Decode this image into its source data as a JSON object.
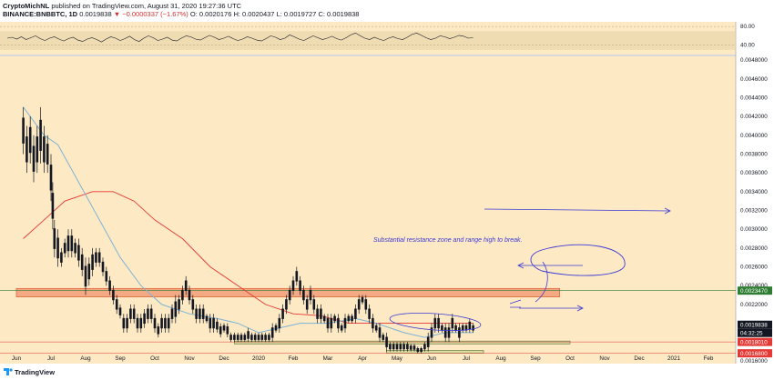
{
  "header": {
    "author": "CryptoMichNL",
    "published": "published on TradingView.com, August 31, 2020 19:27:36 UTC",
    "pair": "BINANCE:BNBBTC, 1D",
    "last": "0.0019838",
    "change": "▼ −0.0000337 (−1.67%)",
    "ohlc": "O: 0.0020176 H: 0.0020437 L: 0.0019727 C: 0.0019838"
  },
  "footer": {
    "brand": "TradingView"
  },
  "colors": {
    "background": "#fde9c4",
    "candles": "#131722",
    "ma_blue": "#7fb3d5",
    "ma_red": "#e53935",
    "resistance_zone": "#f2a07a",
    "support_zone": "#cfdc9a",
    "annotation": "#3a3ad6",
    "price_tag_green": "#2e7d32",
    "price_tag_black": "#131722",
    "price_tag_red": "#e53935"
  },
  "chart_data": [
    {
      "type": "line",
      "name": "rsi-panel",
      "ylim": [
        20,
        90
      ],
      "tick_labels": [
        "80.00",
        "40.00"
      ],
      "band": [
        30,
        70
      ],
      "values": [
        55,
        57,
        53,
        58,
        52,
        56,
        60,
        54,
        50,
        55,
        58,
        53,
        49,
        54,
        57,
        51,
        48,
        53,
        56,
        52,
        47,
        53,
        58,
        55,
        50,
        54,
        59,
        52,
        48,
        55,
        60,
        56,
        50,
        53,
        57,
        51,
        49,
        55,
        60,
        58,
        53,
        51,
        56,
        61,
        57,
        52,
        55,
        59,
        54,
        50,
        53,
        58,
        55,
        51,
        49,
        54,
        60,
        57,
        52,
        55,
        62,
        58,
        53,
        50,
        55,
        60,
        56,
        52,
        55,
        59,
        54,
        51,
        56,
        62,
        66,
        60,
        55,
        52,
        57,
        53,
        50,
        55,
        58,
        54,
        52,
        57,
        63,
        66,
        61,
        56,
        52,
        55,
        60,
        58,
        54,
        57,
        61,
        59,
        55,
        56
      ]
    },
    {
      "type": "line",
      "name": "price-panel",
      "ylim": [
        0.00157,
        0.00484
      ],
      "y_ticks": [
        "0.0048000",
        "0.0046000",
        "0.0044000",
        "0.0042000",
        "0.0040000",
        "0.0038000",
        "0.0036000",
        "0.0034000",
        "0.0032000",
        "0.0030000",
        "0.0028000",
        "0.0026000",
        "0.0024000",
        "0.0022000",
        "0.0020000",
        "0.0018000",
        "0.0016000"
      ],
      "x_ticks": [
        "Jun",
        "Jul",
        "Aug",
        "Sep",
        "Oct",
        "Nov",
        "Dec",
        "2020",
        "Feb",
        "Mar",
        "Apr",
        "May",
        "Jun",
        "Jul",
        "Aug",
        "Sep",
        "Oct",
        "Nov",
        "Dec",
        "2021",
        "Feb"
      ],
      "x_tick_positions": [
        0,
        1,
        2,
        3,
        4,
        5,
        6,
        7,
        8,
        9,
        10,
        11,
        12,
        13,
        14,
        15,
        16,
        17,
        18,
        19,
        20
      ],
      "candles": [
        [
          0.2,
          0.0038,
          0.0043
        ],
        [
          0.3,
          0.0036,
          0.0041
        ],
        [
          0.4,
          0.0037,
          0.0042
        ],
        [
          0.5,
          0.0035,
          0.004
        ],
        [
          0.6,
          0.0036,
          0.0041
        ],
        [
          0.7,
          0.0037,
          0.0043
        ],
        [
          0.8,
          0.0036,
          0.0041
        ],
        [
          0.9,
          0.0036,
          0.004
        ],
        [
          1.0,
          0.0033,
          0.0038
        ],
        [
          1.05,
          0.003,
          0.0035
        ],
        [
          1.1,
          0.0027,
          0.0031
        ],
        [
          1.2,
          0.0026,
          0.003
        ],
        [
          1.3,
          0.0026,
          0.0028
        ],
        [
          1.4,
          0.0027,
          0.0029
        ],
        [
          1.5,
          0.0027,
          0.003
        ],
        [
          1.6,
          0.0027,
          0.003
        ],
        [
          1.7,
          0.0027,
          0.0029
        ],
        [
          1.8,
          0.0026,
          0.0029
        ],
        [
          1.9,
          0.0025,
          0.0028
        ],
        [
          2.0,
          0.0023,
          0.0027
        ],
        [
          2.1,
          0.0024,
          0.0027
        ],
        [
          2.2,
          0.0025,
          0.0028
        ],
        [
          2.3,
          0.0026,
          0.0028
        ],
        [
          2.4,
          0.0026,
          0.0028
        ],
        [
          2.5,
          0.0025,
          0.0027
        ],
        [
          2.6,
          0.0024,
          0.0026
        ],
        [
          2.7,
          0.0023,
          0.0025
        ],
        [
          2.8,
          0.0022,
          0.0024
        ],
        [
          2.9,
          0.0021,
          0.0023
        ],
        [
          3.0,
          0.00205,
          0.0022
        ],
        [
          3.1,
          0.0019,
          0.0021
        ],
        [
          3.2,
          0.0019,
          0.0021
        ],
        [
          3.3,
          0.002,
          0.0022
        ],
        [
          3.4,
          0.002,
          0.0022
        ],
        [
          3.5,
          0.0019,
          0.0021
        ],
        [
          3.6,
          0.0019,
          0.0021
        ],
        [
          3.7,
          0.00195,
          0.00215
        ],
        [
          3.8,
          0.002,
          0.0022
        ],
        [
          3.9,
          0.002,
          0.0022
        ],
        [
          4.0,
          0.0019,
          0.0021
        ],
        [
          4.1,
          0.00185,
          0.002
        ],
        [
          4.2,
          0.0019,
          0.0021
        ],
        [
          4.3,
          0.0019,
          0.0021
        ],
        [
          4.4,
          0.0019,
          0.0021
        ],
        [
          4.5,
          0.002,
          0.0022
        ],
        [
          4.6,
          0.002,
          0.0023
        ],
        [
          4.7,
          0.0021,
          0.0023
        ],
        [
          4.8,
          0.0022,
          0.0024
        ],
        [
          4.9,
          0.0023,
          0.0025
        ],
        [
          5.0,
          0.0022,
          0.0024
        ],
        [
          5.1,
          0.0021,
          0.0023
        ],
        [
          5.2,
          0.002,
          0.0022
        ],
        [
          5.3,
          0.002,
          0.0022
        ],
        [
          5.4,
          0.002,
          0.0022
        ],
        [
          5.5,
          0.002,
          0.0021
        ],
        [
          5.6,
          0.0019,
          0.0021
        ],
        [
          5.7,
          0.0019,
          0.0021
        ],
        [
          5.8,
          0.0019,
          0.00205
        ],
        [
          5.9,
          0.00185,
          0.002
        ],
        [
          6.0,
          0.0019,
          0.002
        ],
        [
          6.1,
          0.00185,
          0.002
        ],
        [
          6.2,
          0.0018,
          0.0019
        ],
        [
          6.3,
          0.0018,
          0.0019
        ],
        [
          6.4,
          0.0018,
          0.0019
        ],
        [
          6.5,
          0.0018,
          0.0019
        ],
        [
          6.6,
          0.0018,
          0.0019
        ],
        [
          6.7,
          0.0018,
          0.00195
        ],
        [
          6.8,
          0.0018,
          0.0019
        ],
        [
          6.9,
          0.0018,
          0.0019
        ],
        [
          7.0,
          0.0018,
          0.0019
        ],
        [
          7.1,
          0.0018,
          0.0019
        ],
        [
          7.2,
          0.0018,
          0.0019
        ],
        [
          7.3,
          0.0018,
          0.0019
        ],
        [
          7.4,
          0.0018,
          0.002
        ],
        [
          7.5,
          0.0019,
          0.002
        ],
        [
          7.6,
          0.0019,
          0.0021
        ],
        [
          7.7,
          0.002,
          0.0022
        ],
        [
          7.8,
          0.0021,
          0.0023
        ],
        [
          7.9,
          0.0022,
          0.0024
        ],
        [
          8.0,
          0.0023,
          0.0025
        ],
        [
          8.1,
          0.0024,
          0.0026
        ],
        [
          8.2,
          0.0023,
          0.0025
        ],
        [
          8.3,
          0.0022,
          0.0024
        ],
        [
          8.4,
          0.0021,
          0.0023
        ],
        [
          8.5,
          0.0022,
          0.0024
        ],
        [
          8.6,
          0.0021,
          0.0023
        ],
        [
          8.7,
          0.002,
          0.0022
        ],
        [
          8.8,
          0.002,
          0.0022
        ],
        [
          8.9,
          0.002,
          0.0021
        ],
        [
          9.0,
          0.0019,
          0.0021
        ],
        [
          9.1,
          0.0019,
          0.0021
        ],
        [
          9.2,
          0.002,
          0.0021
        ],
        [
          9.3,
          0.0019,
          0.0021
        ],
        [
          9.4,
          0.0019,
          0.002
        ],
        [
          9.5,
          0.0019,
          0.0021
        ],
        [
          9.6,
          0.002,
          0.0021
        ],
        [
          9.7,
          0.002,
          0.0021
        ],
        [
          9.8,
          0.002,
          0.0022
        ],
        [
          9.9,
          0.0021,
          0.0023
        ],
        [
          10.0,
          0.0022,
          0.0023
        ],
        [
          10.1,
          0.0021,
          0.0023
        ],
        [
          10.2,
          0.002,
          0.0022
        ],
        [
          10.3,
          0.0019,
          0.0021
        ],
        [
          10.4,
          0.0019,
          0.002
        ],
        [
          10.5,
          0.0018,
          0.002
        ],
        [
          10.6,
          0.0018,
          0.0019
        ],
        [
          10.7,
          0.0017,
          0.0019
        ],
        [
          10.8,
          0.0017,
          0.0018
        ],
        [
          10.9,
          0.0017,
          0.0018
        ],
        [
          11.0,
          0.0017,
          0.0018
        ],
        [
          11.1,
          0.0017,
          0.0018
        ],
        [
          11.2,
          0.0017,
          0.0018
        ],
        [
          11.3,
          0.0017,
          0.0018
        ],
        [
          11.4,
          0.0017,
          0.00178
        ],
        [
          11.5,
          0.0017,
          0.00178
        ],
        [
          11.6,
          0.00168,
          0.00175
        ],
        [
          11.7,
          0.00168,
          0.00175
        ],
        [
          11.8,
          0.0017,
          0.0018
        ],
        [
          11.9,
          0.0017,
          0.0019
        ],
        [
          12.0,
          0.0018,
          0.002
        ],
        [
          12.1,
          0.0019,
          0.0021
        ],
        [
          12.2,
          0.0019,
          0.0021
        ],
        [
          12.3,
          0.0019,
          0.002
        ],
        [
          12.4,
          0.0018,
          0.002
        ],
        [
          12.5,
          0.0018,
          0.002
        ],
        [
          12.6,
          0.0019,
          0.0021
        ],
        [
          12.7,
          0.0019,
          0.002
        ],
        [
          12.8,
          0.0018,
          0.002
        ],
        [
          12.9,
          0.0019,
          0.002
        ],
        [
          13.0,
          0.0019,
          0.002
        ],
        [
          13.1,
          0.0019,
          0.00205
        ],
        [
          13.2,
          0.0019,
          0.002
        ]
      ],
      "ma_blue": [
        [
          0.2,
          0.0043
        ],
        [
          0.8,
          0.004
        ],
        [
          1.2,
          0.0039
        ],
        [
          1.8,
          0.0035
        ],
        [
          2.4,
          0.0031
        ],
        [
          3.0,
          0.0027
        ],
        [
          3.6,
          0.0024
        ],
        [
          4.2,
          0.0022
        ],
        [
          5.0,
          0.0021
        ],
        [
          5.8,
          0.00205
        ],
        [
          6.4,
          0.002
        ],
        [
          7.0,
          0.0019
        ],
        [
          7.6,
          0.00195
        ],
        [
          8.2,
          0.002
        ],
        [
          9.0,
          0.002
        ],
        [
          9.8,
          0.00205
        ],
        [
          10.4,
          0.002
        ],
        [
          11.2,
          0.0019
        ],
        [
          11.8,
          0.00185
        ],
        [
          12.4,
          0.0019
        ],
        [
          13.2,
          0.0019
        ]
      ],
      "ma_red": [
        [
          0.2,
          0.0029
        ],
        [
          0.8,
          0.0031
        ],
        [
          1.4,
          0.0033
        ],
        [
          2.2,
          0.0034
        ],
        [
          2.8,
          0.0034
        ],
        [
          3.4,
          0.0033
        ],
        [
          4.0,
          0.0031
        ],
        [
          4.8,
          0.0029
        ],
        [
          5.6,
          0.0026
        ],
        [
          6.4,
          0.0024
        ],
        [
          7.2,
          0.0022
        ],
        [
          8.0,
          0.0021
        ],
        [
          8.8,
          0.00208
        ],
        [
          9.6,
          0.002
        ],
        [
          10.4,
          0.002
        ],
        [
          11.2,
          0.002
        ],
        [
          12.0,
          0.002
        ],
        [
          12.8,
          0.002
        ],
        [
          13.2,
          0.002
        ]
      ],
      "zones": [
        {
          "name": "resistance",
          "x": [
            0,
            15.7
          ],
          "y": [
            0.00228,
            0.00237
          ]
        },
        {
          "name": "support",
          "x": [
            6.3,
            16.0
          ],
          "y": [
            0.00178,
            0.00181
          ]
        },
        {
          "name": "lower",
          "x": [
            10.7,
            13.5
          ],
          "y": [
            0.00168,
            0.00171
          ]
        }
      ],
      "hlines": [
        0.002347,
        0.001801,
        0.00168
      ],
      "annotation": "Substantial resistance zone and range high to break.",
      "price_tags": [
        {
          "text": "0.0023470",
          "y": 0.002347,
          "color": "#2e7d32"
        },
        {
          "text": "0.0019838",
          "y": 0.0019838,
          "color": "#131722"
        },
        {
          "text": "04:32:25",
          "y": 0.001935,
          "color": "#131722"
        },
        {
          "text": "0.0018010",
          "y": 0.001801,
          "color": "#e53935"
        },
        {
          "text": "0.0016800",
          "y": 0.00168,
          "color": "#e53935"
        }
      ]
    }
  ]
}
